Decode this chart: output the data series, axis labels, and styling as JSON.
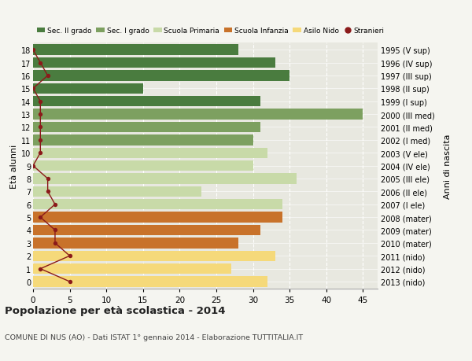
{
  "ages": [
    18,
    17,
    16,
    15,
    14,
    13,
    12,
    11,
    10,
    9,
    8,
    7,
    6,
    5,
    4,
    3,
    2,
    1,
    0
  ],
  "bar_values": [
    28,
    33,
    35,
    15,
    31,
    45,
    31,
    30,
    32,
    30,
    36,
    23,
    34,
    34,
    31,
    28,
    33,
    27,
    32
  ],
  "right_labels": [
    "1995 (V sup)",
    "1996 (IV sup)",
    "1997 (III sup)",
    "1998 (II sup)",
    "1999 (I sup)",
    "2000 (III med)",
    "2001 (II med)",
    "2002 (I med)",
    "2003 (V ele)",
    "2004 (IV ele)",
    "2005 (III ele)",
    "2006 (II ele)",
    "2007 (I ele)",
    "2008 (mater)",
    "2009 (mater)",
    "2010 (mater)",
    "2011 (nido)",
    "2012 (nido)",
    "2013 (nido)"
  ],
  "stranieri_values": [
    0,
    1,
    2,
    0,
    1,
    1,
    1,
    1,
    1,
    0,
    2,
    2,
    3,
    1,
    3,
    3,
    5,
    1,
    5
  ],
  "bar_colors": [
    "#4a7c3f",
    "#4a7c3f",
    "#4a7c3f",
    "#4a7c3f",
    "#4a7c3f",
    "#7da060",
    "#7da060",
    "#7da060",
    "#c8daa8",
    "#c8daa8",
    "#c8daa8",
    "#c8daa8",
    "#c8daa8",
    "#c8722a",
    "#c8722a",
    "#c8722a",
    "#f5d97a",
    "#f5d97a",
    "#f5d97a"
  ],
  "legend_labels": [
    "Sec. II grado",
    "Sec. I grado",
    "Scuola Primaria",
    "Scuola Infanzia",
    "Asilo Nido",
    "Stranieri"
  ],
  "legend_colors": [
    "#4a7c3f",
    "#7da060",
    "#c8daa8",
    "#c8722a",
    "#f5d97a",
    "#8b1a1a"
  ],
  "ylabel_left": "Età alunni",
  "ylabel_right": "Anni di nascita",
  "title": "Popolazione per età scolastica - 2014",
  "subtitle": "COMUNE DI NUS (AO) - Dati ISTAT 1° gennaio 2014 - Elaborazione TUTTITALIA.IT",
  "xlim": [
    0,
    47
  ],
  "background_color": "#f5f5f0",
  "bar_background": "#e8e8e0",
  "stranieri_color": "#8b1a1a",
  "bar_height": 0.82
}
